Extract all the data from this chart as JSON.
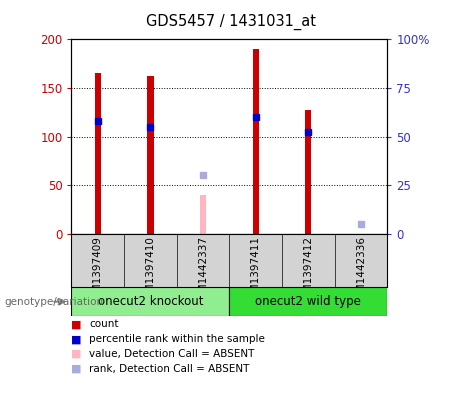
{
  "title": "GDS5457 / 1431031_at",
  "samples": [
    "GSM1397409",
    "GSM1397410",
    "GSM1442337",
    "GSM1397411",
    "GSM1397412",
    "GSM1442336"
  ],
  "bar_values": [
    165,
    162,
    null,
    190,
    127,
    null
  ],
  "absent_bar_values": [
    null,
    null,
    40,
    null,
    null,
    null
  ],
  "blue_marker_left_values": [
    116,
    110,
    null,
    120,
    105,
    null
  ],
  "absent_rank_left_values": [
    null,
    null,
    60,
    null,
    null,
    10
  ],
  "ylim_left": [
    0,
    200
  ],
  "ylim_right": [
    0,
    100
  ],
  "yticks_left": [
    0,
    50,
    100,
    150,
    200
  ],
  "yticks_right": [
    0,
    25,
    50,
    75,
    100
  ],
  "yticklabels_left": [
    "0",
    "50",
    "100",
    "150",
    "200"
  ],
  "yticklabels_right": [
    "0",
    "25",
    "50",
    "75",
    "100%"
  ],
  "left_axis_color": "#cc0000",
  "right_axis_color": "#3333cc",
  "group1_label": "onecut2 knockout",
  "group2_label": "onecut2 wild type",
  "group1_color": "#90ee90",
  "group2_color": "#33dd33",
  "legend_items": [
    {
      "color": "#cc0000",
      "label": "count"
    },
    {
      "color": "#0000cc",
      "label": "percentile rank within the sample"
    },
    {
      "color": "#ffb6c1",
      "label": "value, Detection Call = ABSENT"
    },
    {
      "color": "#aaaadd",
      "label": "rank, Detection Call = ABSENT"
    }
  ],
  "bar_width": 0.12,
  "absent_bar_color": "#ffb6c1",
  "absent_rank_color": "#aaaadd",
  "blue_marker_color": "#0000cc",
  "red_bar_color": "#cc0000",
  "background_color": "#ffffff"
}
